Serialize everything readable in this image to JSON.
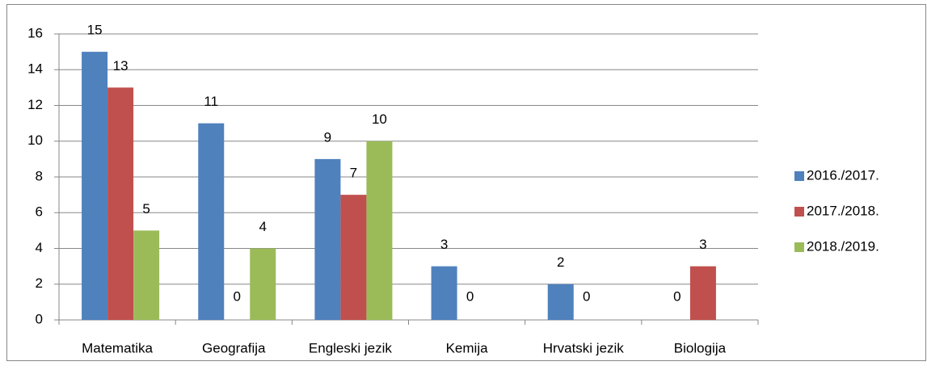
{
  "chart_data": {
    "type": "bar",
    "categories": [
      "Matematika",
      "Geografija",
      "Engleski jezik",
      "Kemija",
      "Hrvatski jezik",
      "Biologija"
    ],
    "series": [
      {
        "name": "2016./2017.",
        "color": "#4f81bd",
        "values": [
          15,
          11,
          9,
          3,
          2,
          0
        ]
      },
      {
        "name": "2017./2018.",
        "color": "#c0504d",
        "values": [
          13,
          0,
          7,
          0,
          0,
          3
        ]
      },
      {
        "name": "2018./2019.",
        "color": "#9bbb59",
        "values": [
          5,
          4,
          10,
          null,
          null,
          null
        ]
      }
    ],
    "ylim": [
      0,
      16
    ],
    "yticks": [
      0,
      2,
      4,
      6,
      8,
      10,
      12,
      14,
      16
    ],
    "grid": true,
    "legend": "right"
  }
}
